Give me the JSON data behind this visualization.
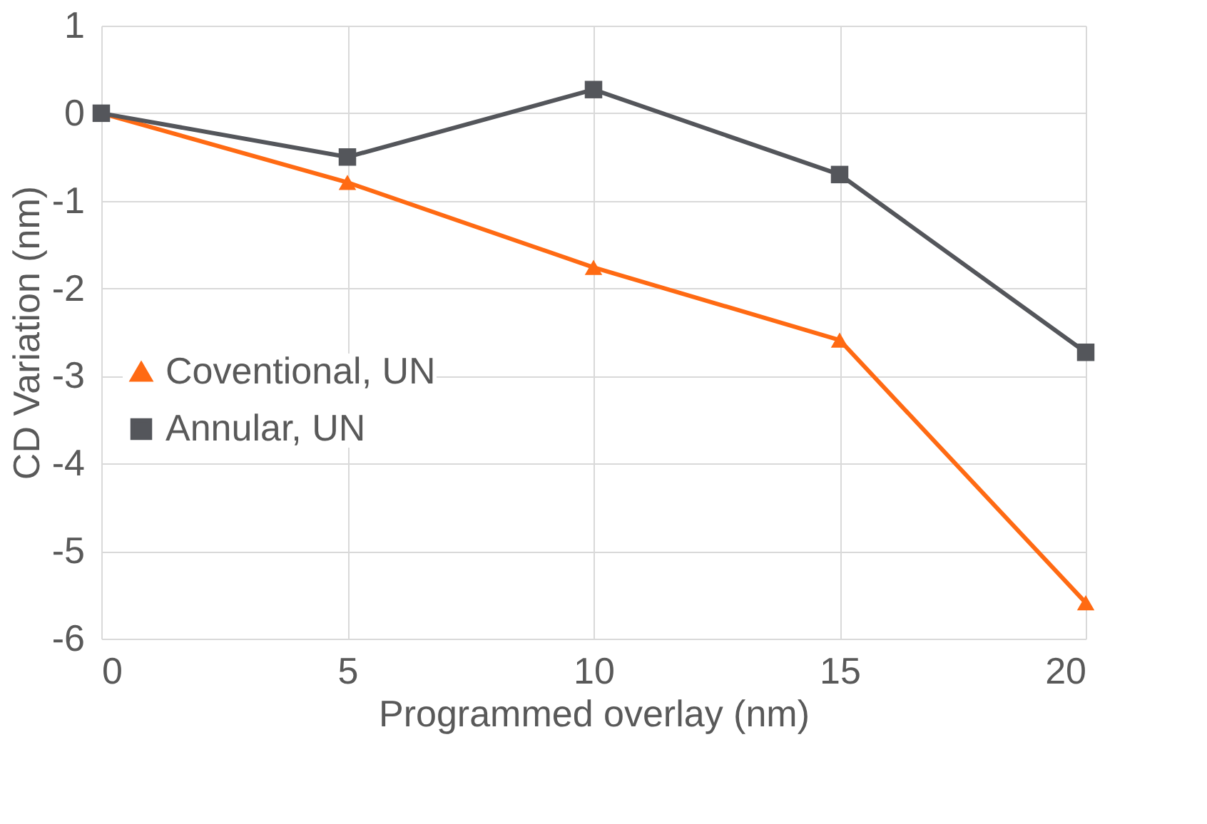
{
  "chart_data": {
    "type": "line",
    "xlabel": "Programmed overlay (nm)",
    "ylabel": "CD Variation (nm)",
    "x": [
      0,
      5,
      10,
      15,
      20
    ],
    "series": [
      {
        "name": "Coventional, UN",
        "color": "#ff6a13",
        "marker": "triangle",
        "values": [
          0,
          -0.79,
          -1.76,
          -2.59,
          -5.59
        ]
      },
      {
        "name": "Annular, UN",
        "color": "#54565b",
        "marker": "square",
        "values": [
          0,
          -0.5,
          0.27,
          -0.7,
          -2.73
        ]
      }
    ],
    "xlim": [
      0,
      20
    ],
    "xticks": [
      0,
      5,
      10,
      15,
      20
    ],
    "ylim": [
      -6,
      1
    ],
    "yticks": [
      -6,
      -5,
      -4,
      -3,
      -2,
      -1,
      0,
      1
    ],
    "grid": true,
    "legend": "left"
  }
}
